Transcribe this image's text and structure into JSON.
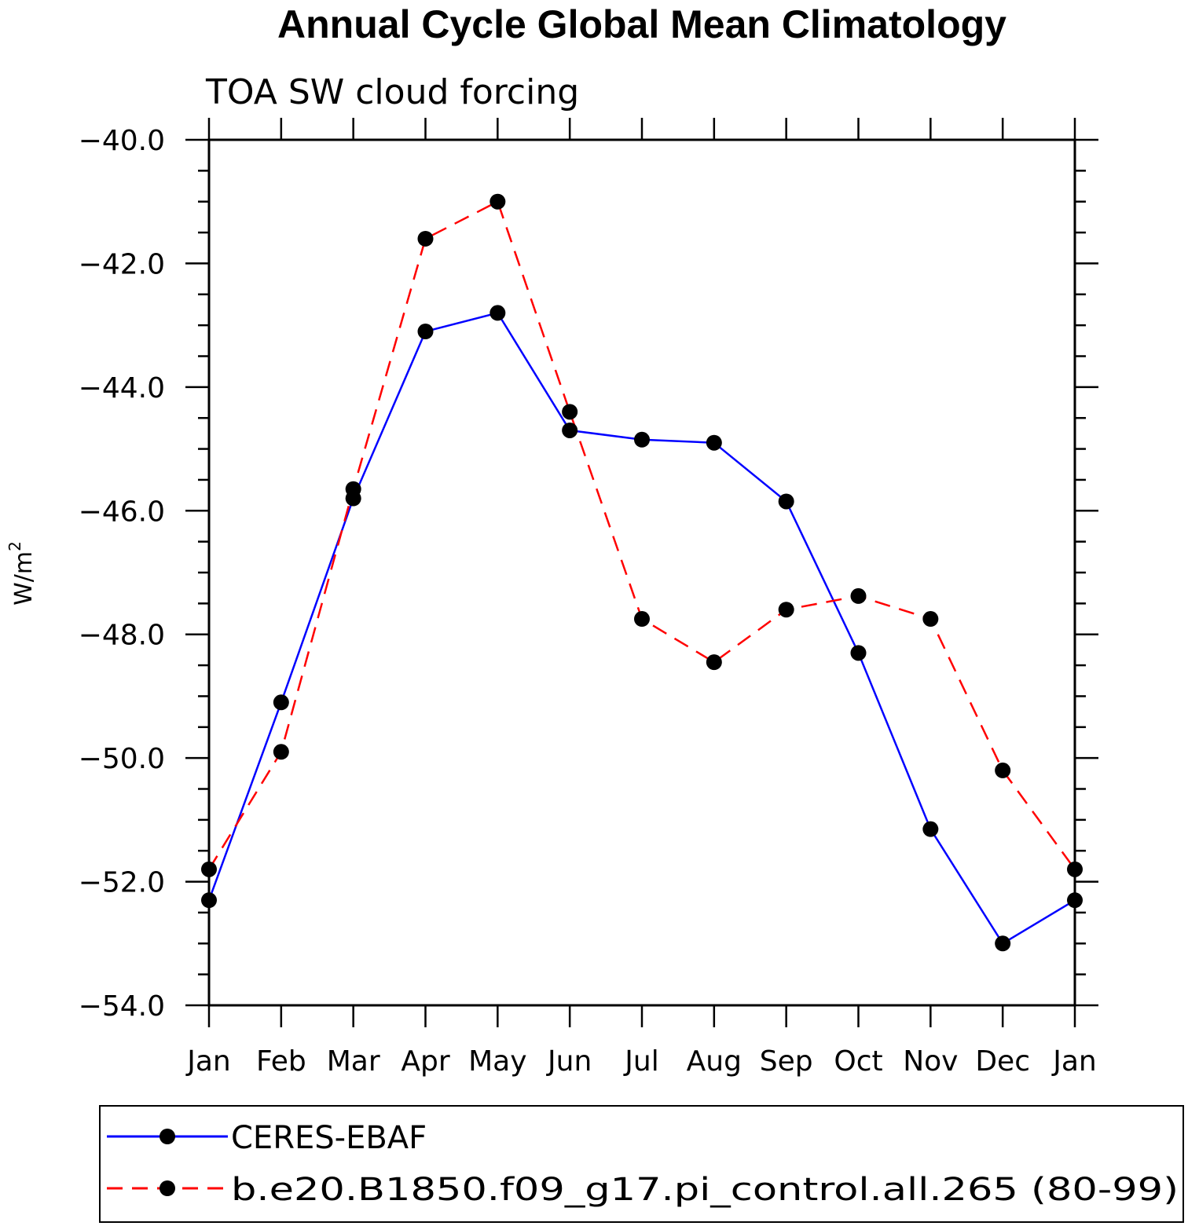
{
  "chart_data": {
    "type": "line",
    "title": "Annual Cycle Global Mean Climatology",
    "subtitle": "TOA SW cloud forcing",
    "ylabel": "W/m",
    "ylabel_superscript": "2",
    "xlabel": "",
    "categories": [
      "Jan",
      "Feb",
      "Mar",
      "Apr",
      "May",
      "Jun",
      "Jul",
      "Aug",
      "Sep",
      "Oct",
      "Nov",
      "Dec",
      "Jan"
    ],
    "ylim": [
      -54.0,
      -40.0
    ],
    "yticks": [
      "-40.0",
      "-42.0",
      "-44.0",
      "-46.0",
      "-48.0",
      "-50.0",
      "-52.0",
      "-54.0"
    ],
    "ytick_values": [
      -40,
      -42,
      -44,
      -46,
      -48,
      -50,
      -52,
      -54
    ],
    "grid": false,
    "legend_placement": "bottom",
    "series": [
      {
        "name": "CERES-EBAF",
        "color": "#0000ff",
        "dash": "solid",
        "marker": "filled-circle",
        "values": [
          -52.3,
          -49.1,
          -45.8,
          -43.1,
          -42.8,
          -44.7,
          -44.85,
          -44.9,
          -45.85,
          -48.3,
          -51.15,
          -53.0,
          -52.3
        ]
      },
      {
        "name": "b.e20.B1850.f09_g17.pi_control.all.265 (80-99)",
        "color": "#ff0000",
        "dash": "dashed",
        "marker": "filled-circle",
        "values": [
          -51.8,
          -49.9,
          -45.65,
          -41.6,
          -41.0,
          -44.4,
          -47.75,
          -48.45,
          -47.6,
          -47.38,
          -47.75,
          -50.2,
          -51.8
        ]
      }
    ]
  }
}
